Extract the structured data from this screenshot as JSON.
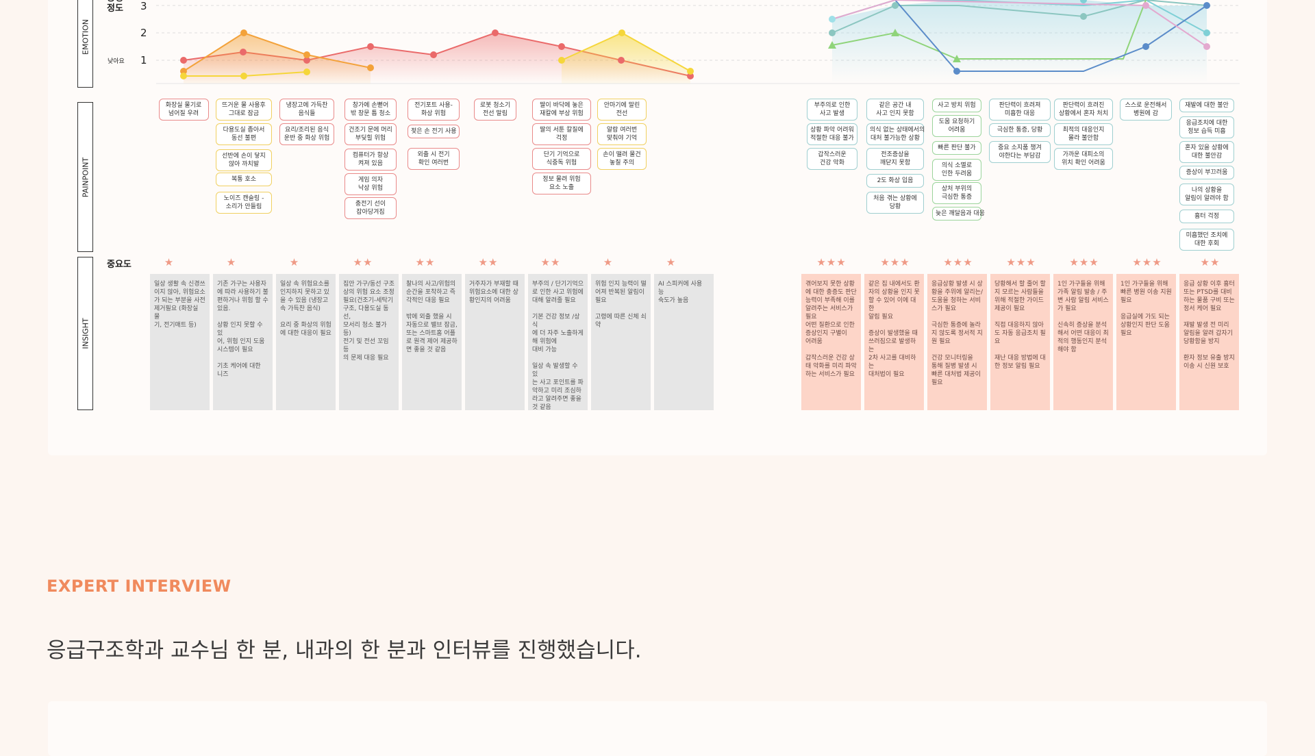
{
  "emotion": {
    "row_label": "EMOTION",
    "scale_title": "긍정\n정도",
    "y_ticks": [
      "3",
      "2",
      "1"
    ],
    "low_label": "낮아요"
  },
  "painpoint": {
    "row_label": "PAINPOINT",
    "columns": [
      {
        "color": "r",
        "items": [
          "화장실 물기로\n넘어질 우려"
        ]
      },
      {
        "color": "y",
        "items": [
          "뜨거운 물 사용후\n그대로 잠금",
          "다용도실 좁아서\n동선 불편",
          "선반에 손이 닿지\n않아 까치발",
          "복통 호소",
          "노이즈 캔슬링 -\n소리가 안들림"
        ]
      },
      {
        "color": "r",
        "items": [
          "냉장고에 가득찬\n음식들",
          "요리/조리된 음식\n운반 중 화상 위험"
        ]
      },
      {
        "color": "r",
        "items": [
          "창가에 손뻗어\n밖 창문 틈 청소",
          "건조기 문에 머리\n부딪힐 위험",
          "컴퓨터가 항상\n켜져 있음",
          "게임 의자\n낙상 위험",
          "충전기 선이\n잡아당겨짐"
        ]
      },
      {
        "color": "r",
        "items": [
          "전기포트 사용-\n화상 위험",
          "젖은 손 전기 사용",
          "외출 시 전기\n확인 여러번"
        ]
      },
      {
        "color": "r",
        "items": [
          "로봇 청소기\n전선 말림"
        ]
      },
      {
        "color": "r",
        "items": [
          "딸이 바닥에 놓은\n재칼에 부상 위험",
          "딸의 서툰 칼질에\n걱정",
          "단기 기억으로\n식중독 위험",
          "정보 물려 위험\n요소 노출"
        ]
      },
      {
        "color": "y",
        "items": [
          "안마기에 말린\n전선",
          "알람 여러번\n맞춰야 기억",
          "손이 떨려 물건\n놓칠 주의"
        ]
      },
      {
        "color": "t",
        "items": [
          "부주의로 인한\n사고 발생",
          "상황 파악 어려워\n적절한 대응 불가",
          "갑작스러운\n건강 악화"
        ]
      },
      {
        "color": "t",
        "items": [
          "같은 공간 내\n사고 인지 못함",
          "의식 없는 상태에서의\n대처 불가능한 상황",
          "전조증상을\n깨닫지 못함",
          "2도 화상 입음",
          "처음 겪는 상황에\n당황"
        ]
      },
      {
        "color": "g",
        "items": [
          "사고 방치 위험",
          "도움 요청하기\n어려움",
          "빠른 판단 불가",
          "의식 소멸로\n인한 두려움",
          "상처 부위의\n극심한 통증",
          "늦은 깨달음과 대응"
        ]
      },
      {
        "color": "t",
        "items": [
          "판단력이 흐려져\n미흡한 대응",
          "극심한 통증, 당황",
          "중요 소지품 챙겨\n야한다는 부담감"
        ]
      },
      {
        "color": "t",
        "items": [
          "판단력이 흐려진\n상황에서 혼자 처치",
          "최적의 대응인지\n몰라 불안함",
          "가까운 대피소의\n위치 확인 어려움"
        ]
      },
      {
        "color": "t",
        "items": [
          "스스로 운전해서\n병원에 감"
        ]
      },
      {
        "color": "t",
        "items": [
          "재발에 대한 불안",
          "응급조치에 대한\n정보 습득 미흡",
          "혼자 있을 상황에\n대한 불안감",
          "증상이 부끄러움",
          "나의 상황을\n알림이 알려야 함",
          "흉터 걱정",
          "미흡했던 조치에\n대한 후회"
        ]
      }
    ]
  },
  "importance": {
    "label": "중요도",
    "stars": [
      "★",
      "★",
      "★",
      "★★",
      "★★",
      "★★",
      "★★",
      "★",
      "★",
      "★★★",
      "★★★",
      "★★★",
      "★★★",
      "★★★",
      "★★★",
      "★★"
    ]
  },
  "insight": {
    "row_label": "INSIGHT",
    "cells": [
      {
        "tone": "grey",
        "text": "일상 생활 속 신경쓰\n이지 않아, 위험요소\n가 되는 부분을 사전\n제거필요 (화장실 물\n기, 전기매트 등)"
      },
      {
        "tone": "grey",
        "text": "기존 가구는 사용자\n에 따라 사용하기 불\n편하거나 위험 할 수\n있음.\n\n상황 인지 못할 수 있\n어, 위험 인지 도움\n시스템이 필요\n\n기초 케어에 대한\n니즈"
      },
      {
        "tone": "grey",
        "text": "일상 속 위험요소를\n인지하지 못하고 있\n을 수 있음 (냉장고\n속 가득찬 음식)\n\n요리 중 화상의 위험\n에 대한 대응이 필요"
      },
      {
        "tone": "grey",
        "text": "집안 가구/동선 구조\n상의 위험 요소 조정\n필요(건조기-세탁기\n구조, 다용도실 동선,\n모서리 청소 불가 등)\n전기 및 전선 꼬임 등\n의 문제 대응 필요"
      },
      {
        "tone": "grey",
        "text": "찰나의 사고/위험의\n순간을 포착하고 즉\n각적인 대응 필요\n\n밖에 외출 했을 시\n자동으로 밸브 잠금,\n또는 스마트홈 어플\n로 원격 제어 제공하\n면 좋을 것 같음"
      },
      {
        "tone": "grey",
        "text": "거주자가 부재할 때\n위험요소에 대한 상\n황인지의 어려움"
      },
      {
        "tone": "grey",
        "text": "부주의 / 단기기억으\n로 인한 사고 위험에\n대해 알려줄 필요\n\n기본 건강 정보 /상식\n에 더 자주 노출하게\n해 위험에\n대비 가능\n\n일상 속 발생할 수 있\n는 사고 포인트를 파\n악하고 미리 조심하\n라고 알려주면 좋을\n것 같음"
      },
      {
        "tone": "grey",
        "text": "위험 인지 능력이 떨\n어져 반복된 알림이\n필요\n\n고령에 따른 신체 쇠\n약"
      },
      {
        "tone": "grey",
        "text": "AI 스피커에 사용 능\n숙도가 높음"
      },
      {
        "tone": "pink",
        "text": "겪어보지 못한 상황\n에 대한 충증도 판단\n능력이 부족해 이를\n알려주는 서비스가\n필요\n어떤 질환으로 인한\n증상인지 구별이\n어려움\n\n갑작스러운 건강 상\n태 악화를 미리 파악\n하는 서비스가 필요"
      },
      {
        "tone": "pink",
        "text": "같은 집 내에서도 환\n자의 상황을 인지 못\n할 수 있어 이에 대한\n알림 필요\n\n증상이 발생했을 때\n쓰러짐으로 발생하는\n2차 사고를 대비하는\n대처법이 필요"
      },
      {
        "tone": "pink",
        "text": "응급상황 발생 시 상\n황을 주위에 알리는/\n도움을 청하는 서비\n스가 필요\n\n극심한 통증에 놀라\n지 않도록 정서적 지\n원 필요\n\n건강 모니터링을\n통해 질병 발생 시\n빠른 대처법 제공이\n필요"
      },
      {
        "tone": "pink",
        "text": "당황해서 할 줄어 할\n지 모르는 사람들을\n위해 적절한 가이드\n제공이 필요\n\n직접 대응하지 않아\n도 자동 응급조치 필\n요\n\n재난 대응 방법에 대\n한 정보 알림 필요"
      },
      {
        "tone": "pink",
        "text": "1인 가구들을 위해\n가족 알림 발송 / 주\n변 사람 알림 서비스\n가 필요\n\n신속히 증상을 분석\n해서 어떤 대응이 최\n적의 행동인지 분석\n해야 함"
      },
      {
        "tone": "pink",
        "text": "1인 가구들을 위해\n빠른 병원 이송 지원\n필요\n\n응급실에 가도 되는\n상황인지 판단 도움\n필요"
      },
      {
        "tone": "pink",
        "text": "응급 상황 이후 흉터\n또는 PTSD를 대비\n하는 물품 구비 또는\n정서 케어 필요\n\n재발 발생 전 미리\n알림을 알려 갑자기\n당황함을 방지\n\n환자 정보 유출 방지\n이송 시 신원 보호"
      }
    ]
  },
  "colors": {
    "red": "#ea6a6a",
    "orange": "#f3a23a",
    "yellow": "#f5d63a",
    "teal": "#7fd0d6",
    "blue": "#5b8cc9",
    "green": "#8fd47a",
    "pink": "#e3a9cf",
    "accent": "#f08a5d"
  },
  "section": {
    "title": "EXPERT INTERVIEW",
    "headline": "응급구조학과 교수님 한 분, 내과의 한 분과 인터뷰를 진행했습니다."
  }
}
